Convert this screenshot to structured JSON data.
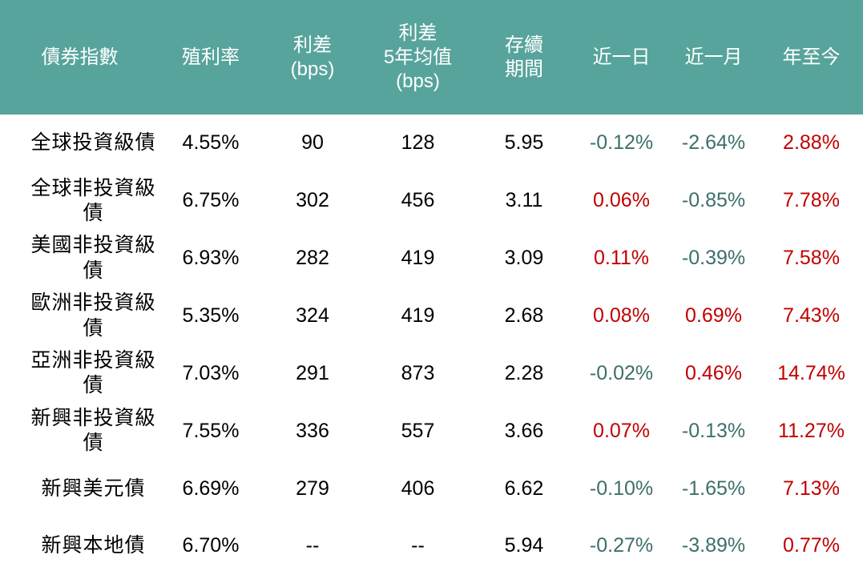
{
  "palette": {
    "header_bg": "#57a49c",
    "header_text": "#ffffff",
    "body_text": "#000000",
    "positive_red": "#c00000",
    "negative_teal": "#3d6f6b",
    "page_bg": "#ffffff"
  },
  "header_display": [
    "債券指數",
    "殖利率",
    "利差\n(bps)",
    "利差\n5年均值\n(bps)",
    "存續\n期間",
    "近一日",
    "近一月",
    "年至今"
  ],
  "chart_data": {
    "type": "table",
    "title": "",
    "columns": [
      "債券指數",
      "殖利率",
      "利差(bps)",
      "利差5年均值(bps)",
      "存續期間",
      "近一日",
      "近一月",
      "年至今"
    ],
    "rows": [
      {
        "index_name": "全球投資級債",
        "yield": "4.55%",
        "spread_bps": "90",
        "spread_5y_avg_bps": "128",
        "duration": "5.95",
        "chg_1d": "-0.12%",
        "chg_1m": "-2.64%",
        "chg_ytd": "2.88%"
      },
      {
        "index_name": "全球非投資級債",
        "yield": "6.75%",
        "spread_bps": "302",
        "spread_5y_avg_bps": "456",
        "duration": "3.11",
        "chg_1d": "0.06%",
        "chg_1m": "-0.85%",
        "chg_ytd": "7.78%"
      },
      {
        "index_name": "美國非投資級債",
        "yield": "6.93%",
        "spread_bps": "282",
        "spread_5y_avg_bps": "419",
        "duration": "3.09",
        "chg_1d": "0.11%",
        "chg_1m": "-0.39%",
        "chg_ytd": "7.58%"
      },
      {
        "index_name": "歐洲非投資級債",
        "yield": "5.35%",
        "spread_bps": "324",
        "spread_5y_avg_bps": "419",
        "duration": "2.68",
        "chg_1d": "0.08%",
        "chg_1m": "0.69%",
        "chg_ytd": "7.43%"
      },
      {
        "index_name": "亞洲非投資級債",
        "yield": "7.03%",
        "spread_bps": "291",
        "spread_5y_avg_bps": "873",
        "duration": "2.28",
        "chg_1d": "-0.02%",
        "chg_1m": "0.46%",
        "chg_ytd": "14.74%"
      },
      {
        "index_name": "新興非投資級債",
        "yield": "7.55%",
        "spread_bps": "336",
        "spread_5y_avg_bps": "557",
        "duration": "3.66",
        "chg_1d": "0.07%",
        "chg_1m": "-0.13%",
        "chg_ytd": "11.27%"
      },
      {
        "index_name": "新興美元債",
        "yield": "6.69%",
        "spread_bps": "279",
        "spread_5y_avg_bps": "406",
        "duration": "6.62",
        "chg_1d": "-0.10%",
        "chg_1m": "-1.65%",
        "chg_ytd": "7.13%"
      },
      {
        "index_name": "新興本地債",
        "yield": "6.70%",
        "spread_bps": "--",
        "spread_5y_avg_bps": "--",
        "duration": "5.94",
        "chg_1d": "-0.27%",
        "chg_1m": "-3.89%",
        "chg_ytd": "0.77%"
      }
    ]
  }
}
